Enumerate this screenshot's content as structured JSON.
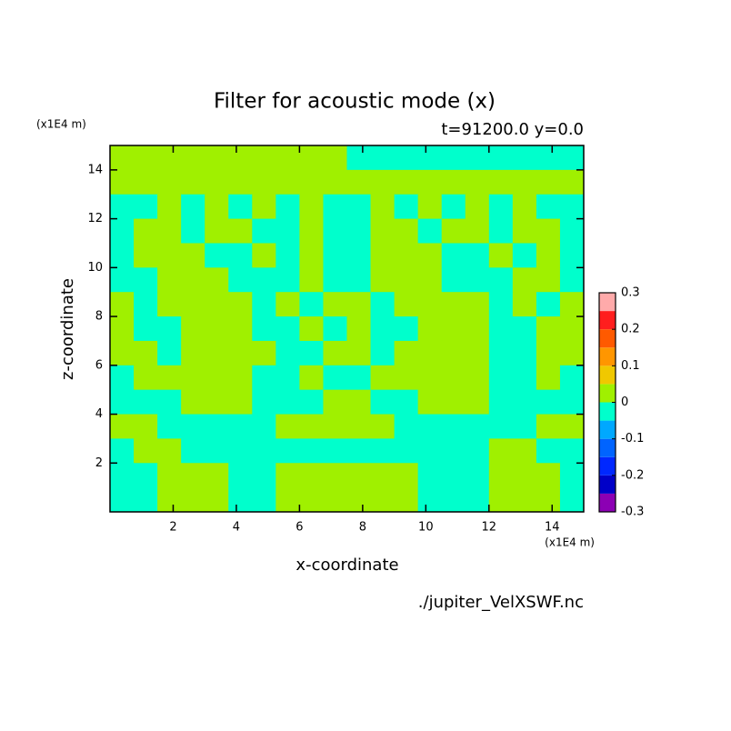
{
  "chart_data": {
    "type": "contour",
    "title": "Filter for acoustic mode (x)",
    "subtitle": "t=91200.0 y=0.0",
    "xlabel": "x-coordinate",
    "ylabel": "z-coordinate",
    "x_unit": "(x1E4 m)",
    "y_unit": "(x1E4 m)",
    "source": "./jupiter_VelXSWF.nc",
    "xlim": [
      0,
      15
    ],
    "ylim": [
      0,
      15
    ],
    "xticks": [
      2,
      4,
      6,
      8,
      10,
      12,
      14
    ],
    "yticks": [
      2,
      4,
      6,
      8,
      10,
      12,
      14
    ],
    "x": [
      0.375,
      1.125,
      1.875,
      2.625,
      3.375,
      4.125,
      4.875,
      5.625,
      6.375,
      7.125,
      7.875,
      8.625,
      9.375,
      10.125,
      10.875,
      11.625,
      12.375,
      13.125,
      13.875,
      14.625
    ],
    "y": [
      14.5,
      13.5,
      12.5,
      11.5,
      10.5,
      9.5,
      8.5,
      7.5,
      6.5,
      5.5,
      4.5,
      3.5,
      2.5,
      1.5,
      0.5
    ],
    "z": [
      [
        0.02,
        0.02,
        0.02,
        0.02,
        0.02,
        0.02,
        0.02,
        0.02,
        0.02,
        0.02,
        -0.02,
        -0.02,
        -0.02,
        -0.02,
        -0.02,
        -0.02,
        -0.02,
        -0.02,
        -0.02,
        -0.02
      ],
      [
        0.02,
        0.02,
        0.02,
        0.02,
        0.02,
        0.02,
        0.02,
        0.02,
        0.02,
        0.02,
        0.02,
        0.02,
        0.02,
        0.02,
        0.02,
        0.02,
        0.02,
        0.02,
        0.02,
        0.02
      ],
      [
        -0.02,
        -0.02,
        0.02,
        -0.02,
        0.02,
        -0.02,
        0.02,
        -0.02,
        0.02,
        -0.02,
        -0.02,
        0.02,
        -0.02,
        0.02,
        -0.02,
        0.02,
        -0.02,
        0.02,
        -0.02,
        -0.02
      ],
      [
        -0.02,
        0.02,
        0.02,
        -0.02,
        0.02,
        0.02,
        -0.02,
        -0.02,
        0.02,
        -0.02,
        -0.02,
        0.02,
        0.02,
        -0.02,
        0.02,
        0.02,
        -0.02,
        0.02,
        0.02,
        -0.02
      ],
      [
        -0.02,
        0.02,
        0.02,
        0.02,
        -0.02,
        -0.02,
        0.02,
        -0.02,
        0.02,
        -0.02,
        -0.02,
        0.02,
        0.02,
        0.02,
        -0.02,
        -0.02,
        0.02,
        -0.02,
        0.02,
        -0.02
      ],
      [
        -0.02,
        -0.02,
        0.02,
        0.02,
        0.02,
        -0.02,
        -0.02,
        -0.02,
        0.02,
        -0.02,
        -0.02,
        0.02,
        0.02,
        0.02,
        -0.02,
        -0.02,
        -0.02,
        0.02,
        0.02,
        -0.02
      ],
      [
        0.02,
        -0.02,
        0.02,
        0.02,
        0.02,
        0.02,
        -0.02,
        0.02,
        -0.02,
        0.02,
        0.02,
        -0.02,
        0.02,
        0.02,
        0.02,
        0.02,
        -0.02,
        0.02,
        -0.02,
        0.02
      ],
      [
        0.02,
        -0.02,
        -0.02,
        0.02,
        0.02,
        0.02,
        -0.02,
        -0.02,
        0.02,
        -0.02,
        0.02,
        -0.02,
        -0.02,
        0.02,
        0.02,
        0.02,
        -0.02,
        -0.02,
        0.02,
        0.02
      ],
      [
        0.02,
        0.02,
        -0.02,
        0.02,
        0.02,
        0.02,
        0.02,
        -0.02,
        -0.02,
        0.02,
        0.02,
        -0.02,
        0.02,
        0.02,
        0.02,
        0.02,
        -0.02,
        -0.02,
        0.02,
        0.02
      ],
      [
        -0.02,
        0.02,
        0.02,
        0.02,
        0.02,
        0.02,
        -0.02,
        -0.02,
        0.02,
        -0.02,
        -0.02,
        0.02,
        0.02,
        0.02,
        0.02,
        0.02,
        -0.02,
        -0.02,
        0.02,
        -0.02
      ],
      [
        -0.02,
        -0.02,
        -0.02,
        0.02,
        0.02,
        0.02,
        -0.02,
        -0.02,
        -0.02,
        0.02,
        0.02,
        -0.02,
        -0.02,
        0.02,
        0.02,
        0.02,
        -0.02,
        -0.02,
        -0.02,
        -0.02
      ],
      [
        0.02,
        0.02,
        -0.02,
        -0.02,
        -0.02,
        -0.02,
        -0.02,
        0.02,
        0.02,
        0.02,
        0.02,
        0.02,
        -0.02,
        -0.02,
        -0.02,
        -0.02,
        -0.02,
        -0.02,
        0.02,
        0.02
      ],
      [
        -0.02,
        0.02,
        0.02,
        -0.02,
        -0.02,
        -0.02,
        -0.02,
        -0.02,
        -0.02,
        -0.02,
        -0.02,
        -0.02,
        -0.02,
        -0.02,
        -0.02,
        -0.02,
        0.02,
        0.02,
        -0.02,
        -0.02
      ],
      [
        -0.02,
        -0.02,
        0.02,
        0.02,
        0.02,
        -0.02,
        -0.02,
        0.02,
        0.02,
        0.02,
        0.02,
        0.02,
        0.02,
        -0.02,
        -0.02,
        -0.02,
        0.02,
        0.02,
        0.02,
        -0.02
      ],
      [
        -0.02,
        -0.02,
        0.02,
        0.02,
        0.02,
        -0.02,
        -0.02,
        0.02,
        0.02,
        0.02,
        0.02,
        0.02,
        0.02,
        -0.02,
        -0.02,
        -0.02,
        0.02,
        0.02,
        0.02,
        -0.02
      ]
    ],
    "levels": [
      -0.3,
      -0.25,
      -0.2,
      -0.15,
      -0.1,
      -0.05,
      0,
      0.05,
      0.1,
      0.15,
      0.2,
      0.25,
      0.3
    ],
    "colors": [
      "#8c00b4",
      "#0000c8",
      "#0028ff",
      "#0064ff",
      "#00a8ff",
      "#00ffcc",
      "#a0f000",
      "#f0c800",
      "#ff9600",
      "#ff5a00",
      "#ff1e1e",
      "#ffaaaa"
    ],
    "cbar_ticks": [
      -0.3,
      -0.2,
      -0.1,
      0,
      0.1,
      0.2,
      0.3
    ]
  }
}
